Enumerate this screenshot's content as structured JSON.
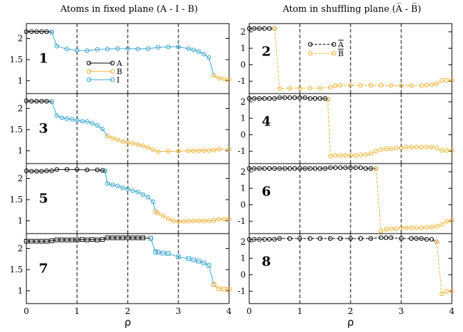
{
  "figure_titles": {
    "left": "Atoms in fixed plane (A - I - B)",
    "right": "Atom in shuffling plane (A̅ - B̅)"
  },
  "colors": {
    "A": "#000000",
    "B": "#f0b43c",
    "I": "#3aa5cf"
  },
  "chart_data": [
    {
      "type": "line",
      "panel_label": "1",
      "column": "left",
      "row": 1,
      "xlim": [
        0,
        4
      ],
      "ylim": [
        0.7,
        2.35
      ],
      "yticks": [
        1,
        1.5,
        2
      ],
      "ytick_labels": [
        "1",
        "1.5",
        "2"
      ],
      "vlines": [
        1,
        2,
        3
      ],
      "legend": {
        "position": "left-center",
        "entries": [
          "A",
          "B",
          "I"
        ]
      },
      "series": [
        {
          "name": "A",
          "marker": "circle",
          "x": [
            0.0,
            0.1,
            0.2,
            0.3,
            0.4,
            0.5
          ],
          "y": [
            2.16,
            2.16,
            2.16,
            2.16,
            2.16,
            2.15
          ]
        },
        {
          "name": "I",
          "marker": "circle",
          "x": [
            0.5,
            0.6,
            0.8,
            1.0,
            1.2,
            1.4,
            1.6,
            1.8,
            2.0,
            2.2,
            2.4,
            2.6,
            2.8,
            3.0,
            3.2,
            3.3,
            3.4,
            3.5,
            3.6,
            3.7
          ],
          "y": [
            2.15,
            1.82,
            1.75,
            1.72,
            1.71,
            1.74,
            1.75,
            1.76,
            1.76,
            1.75,
            1.76,
            1.79,
            1.8,
            1.8,
            1.76,
            1.73,
            1.69,
            1.63,
            1.55,
            1.13
          ]
        },
        {
          "name": "B",
          "marker": "circle",
          "x": [
            3.7,
            3.8,
            3.9,
            4.0
          ],
          "y": [
            1.13,
            1.06,
            1.04,
            1.03
          ]
        }
      ]
    },
    {
      "type": "line",
      "panel_label": "3",
      "column": "left",
      "row": 2,
      "xlim": [
        0,
        4
      ],
      "ylim": [
        0.7,
        2.35
      ],
      "yticks": [
        1,
        1.5,
        2
      ],
      "ytick_labels": [
        "1",
        "1.5",
        "2"
      ],
      "vlines": [
        1,
        2,
        3
      ],
      "series": [
        {
          "name": "A",
          "marker": "circle",
          "x": [
            0.0,
            0.1,
            0.2,
            0.3,
            0.4,
            0.5
          ],
          "y": [
            2.18,
            2.17,
            2.17,
            2.17,
            2.17,
            2.16
          ]
        },
        {
          "name": "I",
          "marker": "circle",
          "x": [
            0.5,
            0.6,
            0.7,
            0.8,
            0.9,
            1.0,
            1.1,
            1.2,
            1.3,
            1.4,
            1.5,
            1.6
          ],
          "y": [
            2.16,
            1.83,
            1.78,
            1.76,
            1.74,
            1.72,
            1.7,
            1.69,
            1.65,
            1.6,
            1.52,
            1.35
          ]
        },
        {
          "name": "B",
          "marker": "circle",
          "x": [
            1.6,
            1.7,
            1.8,
            1.9,
            2.0,
            2.1,
            2.2,
            2.3,
            2.4,
            2.5,
            2.6,
            2.8,
            3.0,
            3.2,
            3.3,
            3.4,
            3.5,
            3.6,
            3.7,
            3.8,
            4.0
          ],
          "y": [
            1.35,
            1.3,
            1.26,
            1.22,
            1.19,
            1.18,
            1.15,
            1.12,
            1.08,
            1.03,
            0.98,
            0.99,
            0.99,
            1.0,
            1.0,
            1.0,
            1.01,
            1.01,
            1.02,
            1.04,
            1.04
          ]
        }
      ]
    },
    {
      "type": "line",
      "panel_label": "5",
      "column": "left",
      "row": 3,
      "xlim": [
        0,
        4
      ],
      "ylim": [
        0.7,
        2.35
      ],
      "yticks": [
        1,
        1.5,
        2
      ],
      "ytick_labels": [
        "1",
        "1.5",
        "2"
      ],
      "vlines": [
        1,
        2,
        3
      ],
      "series": [
        {
          "name": "A",
          "marker": "circle",
          "x": [
            0.0,
            0.1,
            0.2,
            0.3,
            0.4,
            0.5,
            0.6,
            0.8,
            1.0,
            1.2,
            1.4,
            1.5,
            1.55
          ],
          "y": [
            2.18,
            2.17,
            2.17,
            2.17,
            2.18,
            2.18,
            2.21,
            2.21,
            2.21,
            2.2,
            2.2,
            2.19,
            2.18
          ]
        },
        {
          "name": "I",
          "marker": "circle",
          "x": [
            1.55,
            1.6,
            1.7,
            1.8,
            1.9,
            2.0,
            2.1,
            2.2,
            2.3,
            2.4,
            2.5,
            2.55
          ],
          "y": [
            2.18,
            1.88,
            1.85,
            1.82,
            1.78,
            1.75,
            1.71,
            1.68,
            1.62,
            1.56,
            1.45,
            1.22
          ]
        },
        {
          "name": "B",
          "marker": "circle",
          "x": [
            2.55,
            2.6,
            2.7,
            2.8,
            2.9,
            3.0,
            3.1,
            3.2,
            3.3,
            3.4,
            3.5,
            3.6,
            3.7,
            3.8,
            3.9,
            4.0
          ],
          "y": [
            1.22,
            1.18,
            1.12,
            1.05,
            1.0,
            0.98,
            0.99,
            0.99,
            1.0,
            1.0,
            1.0,
            1.0,
            1.01,
            1.04,
            1.04,
            1.04
          ]
        }
      ]
    },
    {
      "type": "line",
      "panel_label": "7",
      "column": "left",
      "row": 4,
      "xlim": [
        0,
        4
      ],
      "ylim": [
        0.7,
        2.35
      ],
      "yticks": [
        1,
        1.5,
        2
      ],
      "ytick_labels": [
        "1",
        "1.5",
        "2"
      ],
      "vlines": [
        1,
        2,
        3
      ],
      "series": [
        {
          "name": "A",
          "marker": "square",
          "x": [
            0.0,
            0.1,
            0.2,
            0.3,
            0.4,
            0.5,
            0.6,
            0.7,
            0.8,
            0.9,
            1.0,
            1.1,
            1.2,
            1.3,
            1.4,
            1.5,
            1.6,
            1.7,
            1.8,
            1.9,
            2.0,
            2.1,
            2.2,
            2.3,
            2.45
          ],
          "y": [
            2.17,
            2.17,
            2.17,
            2.17,
            2.17,
            2.18,
            2.2,
            2.2,
            2.2,
            2.2,
            2.2,
            2.21,
            2.2,
            2.21,
            2.2,
            2.21,
            2.25,
            2.25,
            2.25,
            2.25,
            2.25,
            2.25,
            2.25,
            2.25,
            2.24
          ]
        },
        {
          "name": "I",
          "marker": "square",
          "x": [
            2.45,
            2.55,
            2.6,
            2.7,
            2.8,
            3.0,
            3.2,
            3.3,
            3.4,
            3.5,
            3.6,
            3.7
          ],
          "y": [
            2.24,
            1.92,
            1.91,
            1.89,
            1.88,
            1.8,
            1.76,
            1.73,
            1.7,
            1.66,
            1.6,
            1.15
          ]
        },
        {
          "name": "B",
          "marker": "square",
          "x": [
            3.7,
            3.8,
            3.9,
            4.0
          ],
          "y": [
            1.15,
            1.05,
            1.04,
            1.03
          ]
        }
      ]
    },
    {
      "type": "line",
      "panel_label": "2",
      "column": "right",
      "row": 1,
      "xlim": [
        0,
        4
      ],
      "ylim": [
        -1.75,
        2.5
      ],
      "yticks": [
        -1,
        0,
        1,
        2
      ],
      "ytick_labels": [
        "-1",
        "0",
        "1",
        "2"
      ],
      "vlines": [
        1,
        2,
        3
      ],
      "legend": {
        "position": "top-center",
        "entries": [
          "A̅",
          "B̅"
        ]
      },
      "series": [
        {
          "name": "A̅",
          "marker": "circle",
          "x": [
            0.0,
            0.1,
            0.2,
            0.3,
            0.4,
            0.5
          ],
          "y": [
            2.2,
            2.2,
            2.2,
            2.2,
            2.2,
            2.2
          ]
        },
        {
          "name": "B̅",
          "marker": "circle",
          "x": [
            0.5,
            0.6,
            0.8,
            1.0,
            1.2,
            1.4,
            1.6,
            1.7,
            1.8,
            2.0,
            2.2,
            2.4,
            2.6,
            2.8,
            3.0,
            3.2,
            3.4,
            3.5,
            3.6,
            3.7,
            3.8,
            3.9,
            4.0
          ],
          "y": [
            2.2,
            -1.45,
            -1.42,
            -1.42,
            -1.42,
            -1.42,
            -1.38,
            -1.28,
            -1.25,
            -1.25,
            -1.25,
            -1.25,
            -1.25,
            -1.25,
            -1.28,
            -1.27,
            -1.26,
            -1.24,
            -1.2,
            -1.15,
            -0.95,
            -0.95,
            -0.95
          ]
        }
      ]
    },
    {
      "type": "line",
      "panel_label": "4",
      "column": "right",
      "row": 2,
      "xlim": [
        0,
        4
      ],
      "ylim": [
        -1.75,
        2.5
      ],
      "yticks": [
        -1,
        0,
        1,
        2
      ],
      "ytick_labels": [
        "-1",
        "0",
        "1",
        "2"
      ],
      "vlines": [
        1,
        2,
        3
      ],
      "series": [
        {
          "name": "A̅",
          "marker": "circle",
          "x": [
            0.0,
            0.1,
            0.2,
            0.3,
            0.4,
            0.5,
            0.6,
            0.7,
            0.8,
            0.9,
            1.0,
            1.1,
            1.2,
            1.3,
            1.4,
            1.5,
            1.55
          ],
          "y": [
            2.2,
            2.2,
            2.2,
            2.2,
            2.2,
            2.2,
            2.25,
            2.25,
            2.25,
            2.25,
            2.25,
            2.25,
            2.2,
            2.2,
            2.2,
            2.2,
            2.15
          ]
        },
        {
          "name": "B̅",
          "marker": "circle",
          "x": [
            1.55,
            1.6,
            1.7,
            1.8,
            1.9,
            2.0,
            2.1,
            2.2,
            2.3,
            2.4,
            2.5,
            2.6,
            2.7,
            2.8,
            2.9,
            3.0,
            3.1,
            3.2,
            3.3,
            3.4,
            3.5,
            3.6,
            3.7,
            3.8,
            3.9,
            4.0
          ],
          "y": [
            2.15,
            -1.3,
            -1.25,
            -1.25,
            -1.25,
            -1.25,
            -1.25,
            -1.22,
            -1.2,
            -1.15,
            -1.0,
            -0.9,
            -0.85,
            -0.85,
            -0.8,
            -0.8,
            -0.75,
            -0.75,
            -0.75,
            -0.75,
            -0.75,
            -0.75,
            -0.8,
            -0.95,
            -0.95,
            -0.95
          ]
        }
      ]
    },
    {
      "type": "line",
      "panel_label": "6",
      "column": "right",
      "row": 3,
      "xlim": [
        0,
        4
      ],
      "ylim": [
        -1.75,
        2.5
      ],
      "yticks": [
        -1,
        0,
        1,
        2
      ],
      "ytick_labels": [
        "-1",
        "0",
        "1",
        "2"
      ],
      "vlines": [
        1,
        2,
        3
      ],
      "series": [
        {
          "name": "A̅",
          "marker": "circle",
          "x": [
            0.0,
            0.1,
            0.2,
            0.3,
            0.4,
            0.5,
            0.6,
            0.7,
            0.8,
            0.9,
            1.0,
            1.1,
            1.2,
            1.3,
            1.4,
            1.5,
            1.6,
            1.7,
            1.8,
            1.9,
            2.0,
            2.1,
            2.2,
            2.3,
            2.4,
            2.5
          ],
          "y": [
            2.2,
            2.2,
            2.2,
            2.2,
            2.2,
            2.2,
            2.2,
            2.2,
            2.2,
            2.2,
            2.2,
            2.2,
            2.2,
            2.2,
            2.2,
            2.2,
            2.25,
            2.25,
            2.25,
            2.25,
            2.25,
            2.25,
            2.25,
            2.2,
            2.2,
            2.2
          ]
        },
        {
          "name": "B̅",
          "marker": "circle",
          "x": [
            2.5,
            2.6,
            2.7,
            2.8,
            2.9,
            3.0,
            3.1,
            3.2,
            3.3,
            3.4,
            3.5,
            3.6,
            3.7,
            3.8,
            3.9,
            4.0
          ],
          "y": [
            2.2,
            -1.6,
            -1.5,
            -1.45,
            -1.45,
            -1.4,
            -1.4,
            -1.4,
            -1.4,
            -1.4,
            -1.38,
            -1.35,
            -1.3,
            -1.2,
            -1.0,
            -0.95
          ]
        }
      ]
    },
    {
      "type": "line",
      "panel_label": "8",
      "column": "right",
      "row": 4,
      "xlim": [
        0,
        4
      ],
      "ylim": [
        -1.75,
        2.5
      ],
      "yticks": [
        -1,
        0,
        1,
        2
      ],
      "ytick_labels": [
        "-1",
        "0",
        "1",
        "2"
      ],
      "vlines": [
        1,
        2,
        3
      ],
      "series": [
        {
          "name": "A̅",
          "marker": "circle",
          "x": [
            0.0,
            0.1,
            0.2,
            0.3,
            0.4,
            0.5,
            0.6,
            0.8,
            1.0,
            1.2,
            1.4,
            1.6,
            1.8,
            2.0,
            2.2,
            2.4,
            2.6,
            2.7,
            2.8,
            3.0,
            3.2,
            3.3,
            3.4,
            3.5,
            3.6,
            3.7
          ],
          "y": [
            2.15,
            2.15,
            2.15,
            2.15,
            2.15,
            2.15,
            2.2,
            2.2,
            2.2,
            2.2,
            2.2,
            2.2,
            2.2,
            2.2,
            2.2,
            2.2,
            2.25,
            2.25,
            2.25,
            2.2,
            2.2,
            2.2,
            2.2,
            2.15,
            2.15,
            2.0
          ]
        },
        {
          "name": "B̅",
          "marker": "circle",
          "x": [
            3.7,
            3.8,
            3.9,
            4.0
          ],
          "y": [
            2.0,
            -1.15,
            -1.0,
            -1.0
          ]
        }
      ]
    }
  ],
  "xaxis": {
    "label": "ρ",
    "ticks": [
      0,
      1,
      2,
      3,
      4
    ],
    "tick_labels": [
      "0",
      "1",
      "2",
      "3",
      "4"
    ]
  }
}
